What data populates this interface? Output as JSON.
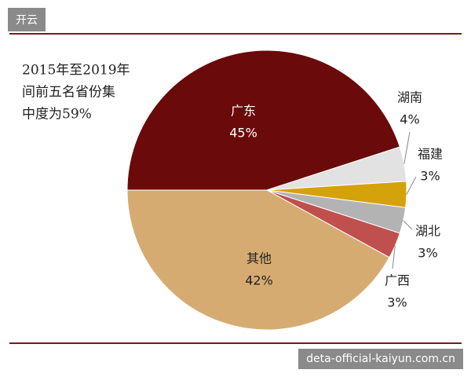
{
  "header": {
    "tag": "开云"
  },
  "watermark": "deta-official-kaiyun.com.cn",
  "chart_data": {
    "type": "pie",
    "annotation": [
      "2015年至2019年",
      "间前五名省份集",
      "中度为59%"
    ],
    "categories": [
      "广东",
      "湖南",
      "福建",
      "湖北",
      "广西",
      "其他"
    ],
    "values": [
      45,
      4,
      3,
      3,
      3,
      42
    ],
    "value_labels": [
      "45%",
      "4%",
      "3%",
      "3%",
      "3%",
      "42%"
    ],
    "colors": [
      "#6b0a0a",
      "#e2e2e2",
      "#d4a20a",
      "#b3b3b3",
      "#c0504d",
      "#d6ab72"
    ]
  }
}
